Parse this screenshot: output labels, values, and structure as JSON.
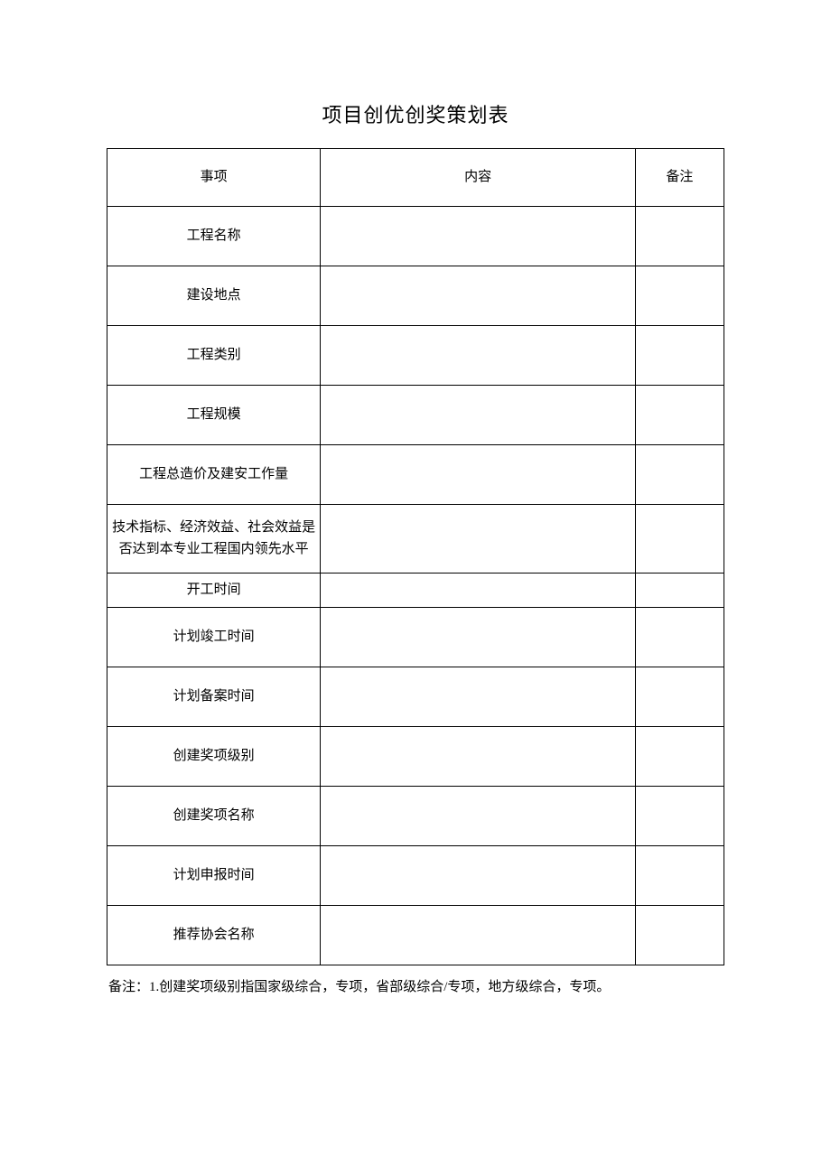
{
  "title": "项目创优创奖策划表",
  "table": {
    "header": {
      "item": "事项",
      "content": "内容",
      "note": "备注"
    },
    "rows": [
      {
        "item": "工程名称",
        "content": "",
        "note": ""
      },
      {
        "item": "建设地点",
        "content": "",
        "note": ""
      },
      {
        "item": "工程类别",
        "content": "",
        "note": ""
      },
      {
        "item": "工程规模",
        "content": "",
        "note": ""
      },
      {
        "item": "工程总造价及建安工作量",
        "content": "",
        "note": ""
      },
      {
        "item": "技术指标、经济效益、社会效益是否达到本专业工程国内领先水平",
        "content": "",
        "note": ""
      },
      {
        "item": "开工时间",
        "content": "",
        "note": ""
      },
      {
        "item": "计划竣工时间",
        "content": "",
        "note": ""
      },
      {
        "item": "计划备案时间",
        "content": "",
        "note": ""
      },
      {
        "item": "创建奖项级别",
        "content": "",
        "note": ""
      },
      {
        "item": "创建奖项名称",
        "content": "",
        "note": ""
      },
      {
        "item": "计划申报时间",
        "content": "",
        "note": ""
      },
      {
        "item": "推荐协会名称",
        "content": "",
        "note": ""
      }
    ],
    "column_widths": {
      "item": 236,
      "content": 348,
      "note": 98
    },
    "row_heights": {
      "header": 64,
      "normal": 66,
      "multi": 76,
      "short": 38
    },
    "border_color": "#000000",
    "background_color": "#ffffff",
    "font_size": 15,
    "text_color": "#000000"
  },
  "footnote": "备注：1.创建奖项级别指国家级综合，专项，省部级综合/专项，地方级综合，专项。"
}
